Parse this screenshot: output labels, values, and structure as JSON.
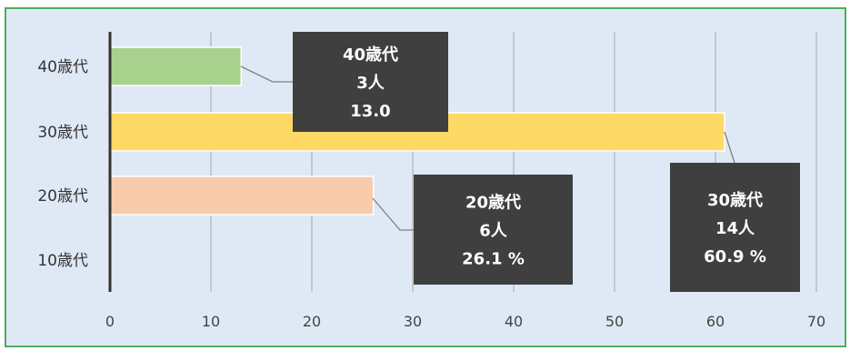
{
  "chart_data": {
    "type": "bar",
    "orientation": "horizontal",
    "categories": [
      "10歳代",
      "20歳代",
      "30歳代",
      "40歳代"
    ],
    "values": [
      0,
      26.1,
      60.9,
      13.0
    ],
    "colors": [
      "#f8cbad",
      "#f8cbad",
      "#ffd966",
      "#a9d18e"
    ],
    "xlim": [
      0,
      70
    ],
    "xticks": [
      "0",
      "10",
      "20",
      "30",
      "40",
      "50",
      "60",
      "70"
    ],
    "grid": true,
    "axis_color": "#333333",
    "grid_color": "#a6a6a6",
    "background": "#dfe9f5",
    "border_color": "#4cae5b",
    "callout_bg": "#3f3f3f",
    "callouts": [
      {
        "category": "40歳代",
        "lines": [
          "40歳代",
          "3人",
          "13.0"
        ]
      },
      {
        "category": "20歳代",
        "lines": [
          "20歳代",
          "6人",
          "26.1 %"
        ]
      },
      {
        "category": "30歳代",
        "lines": [
          "30歳代",
          "14人",
          "60.9 %"
        ]
      }
    ]
  }
}
